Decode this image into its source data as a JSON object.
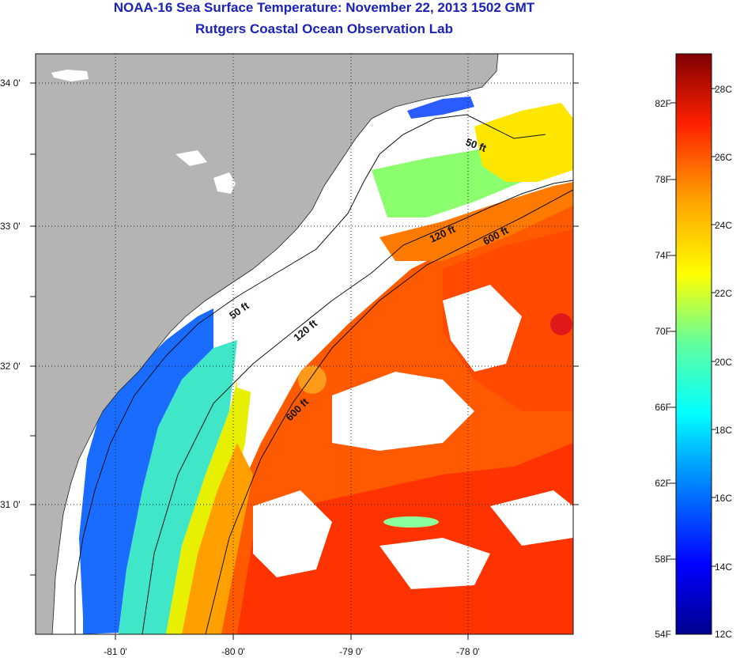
{
  "title": {
    "line1": "NOAA-16 Sea Surface Temperature:  November 22, 2013 1502 GMT",
    "line2": "Rutgers Coastal Ocean Observation Lab"
  },
  "map": {
    "lon_range": [
      -81.68,
      -77.1
    ],
    "lat_range": [
      30.18,
      34.2
    ],
    "lat_ticks": [
      "34 0'",
      "33 0'",
      "32 0'",
      "31 0'"
    ],
    "lon_ticks": [
      "-81 0'",
      "-80 0'",
      "-79 0'",
      "-78 0'"
    ],
    "isobaths": [
      "50 ft",
      "120 ft",
      "600 ft"
    ],
    "depth_labels": [
      {
        "text": "50 ft"
      },
      {
        "text": "50 ft"
      },
      {
        "text": "120 ft"
      },
      {
        "text": "120 ft"
      },
      {
        "text": "600 ft"
      },
      {
        "text": "600 ft"
      }
    ]
  },
  "colorbar": {
    "range_c": [
      12,
      29
    ],
    "celsius_labels": [
      "28C",
      "26C",
      "24C",
      "22C",
      "20C",
      "18C",
      "16C",
      "14C",
      "12C"
    ],
    "fahrenheit_labels": [
      "82F",
      "78F",
      "74F",
      "70F",
      "66F",
      "62F",
      "58F",
      "54F"
    ]
  },
  "colors": {
    "land": "#b4b4b4",
    "title": "#1a22b8"
  }
}
